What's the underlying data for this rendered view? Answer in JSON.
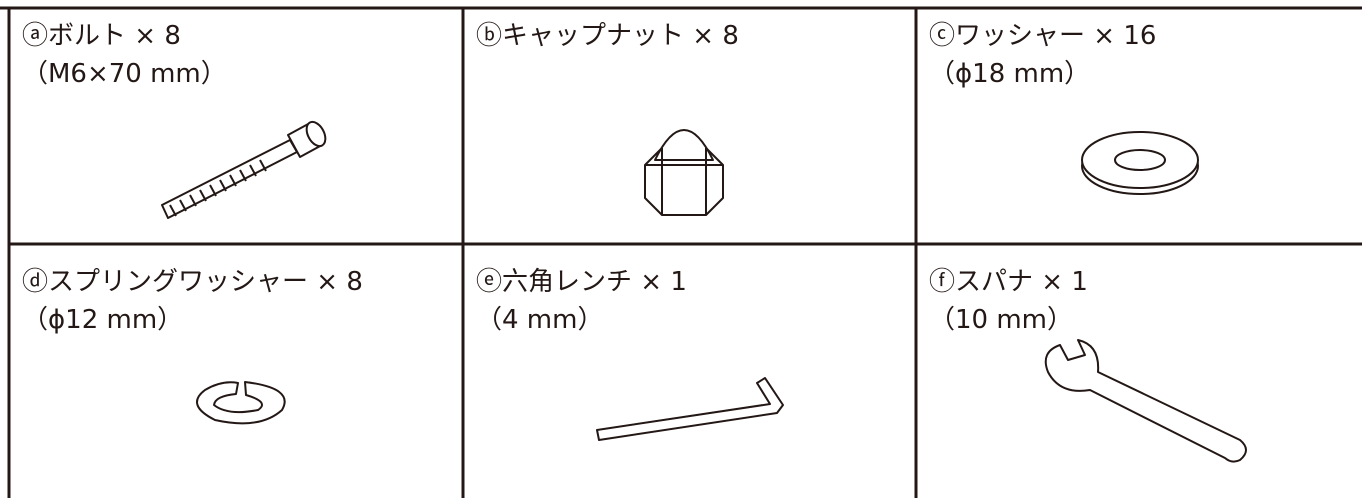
{
  "items": [
    {
      "label": "ⓐボルト × 8",
      "spec": "（M6×70 mm）"
    },
    {
      "label": "ⓑキャップナット × 8"
    },
    {
      "label": "ⓒワッシャー × 16",
      "spec": "（ϕ18 mm）"
    },
    {
      "label": "ⓓスプリングワッシャー × 8",
      "spec": "（ϕ12 mm）"
    },
    {
      "label": "ⓔ六角レンチ × 1",
      "spec": "（4 mm）"
    },
    {
      "label": "ⓕスパナ × 1",
      "spec": "（10 mm）"
    }
  ]
}
